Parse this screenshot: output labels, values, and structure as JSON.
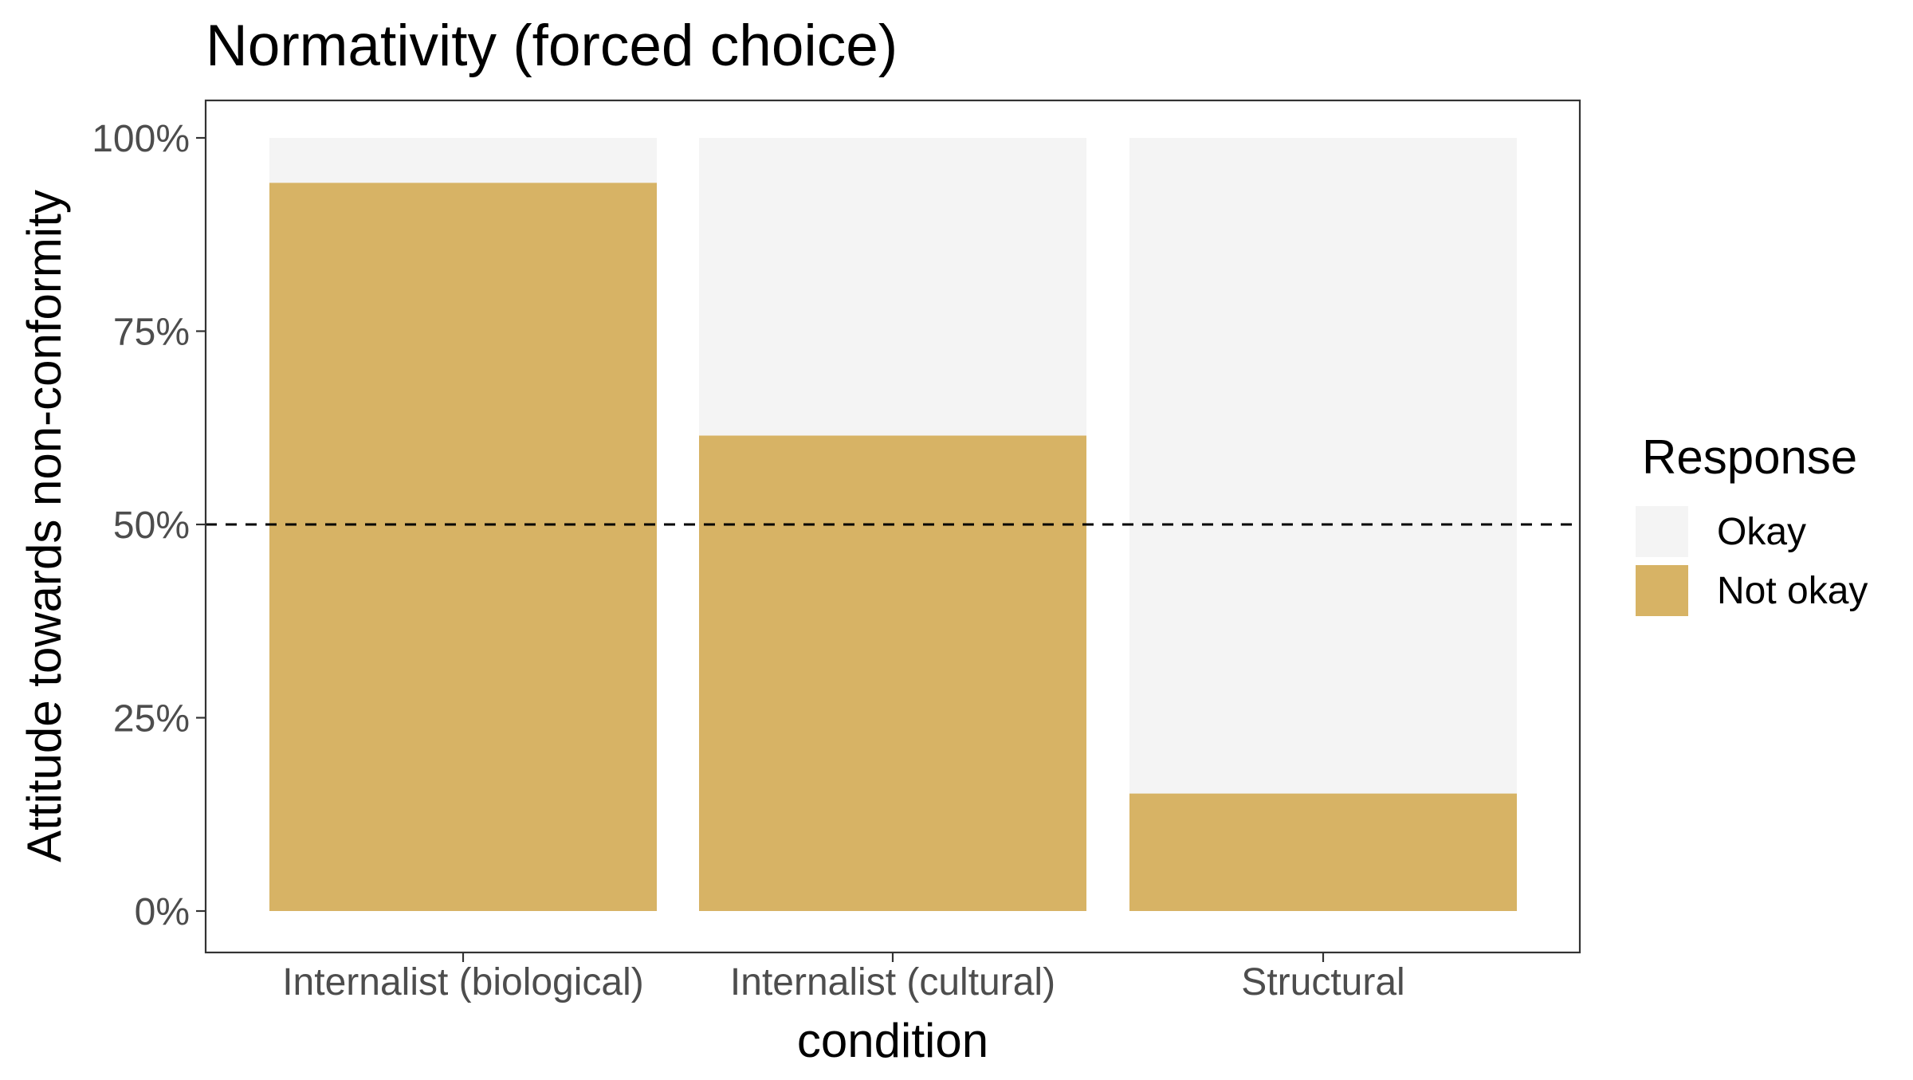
{
  "chart_data": {
    "type": "bar",
    "stacked": true,
    "title": "Normativity (forced choice)",
    "xlabel": "condition",
    "ylabel": "Attitude towards non-conformity",
    "categories": [
      "Internalist (biological)",
      "Internalist (cultural)",
      "Structural"
    ],
    "series": [
      {
        "name": "Okay",
        "color": "#f4f4f4",
        "values": [
          0.058,
          0.385,
          0.848
        ]
      },
      {
        "name": "Not okay",
        "color": "#d7b365",
        "values": [
          0.942,
          0.615,
          0.152
        ]
      }
    ],
    "ylim": [
      0,
      1
    ],
    "yticks": [
      0,
      0.25,
      0.5,
      0.75,
      1.0
    ],
    "ytick_labels": [
      "0%",
      "25%",
      "50%",
      "75%",
      "100%"
    ],
    "reference_line": {
      "y": 0.5,
      "style": "dashed"
    },
    "legend": {
      "title": "Response",
      "entries": [
        "Okay",
        "Not okay"
      ],
      "position": "right"
    },
    "grid": false
  }
}
